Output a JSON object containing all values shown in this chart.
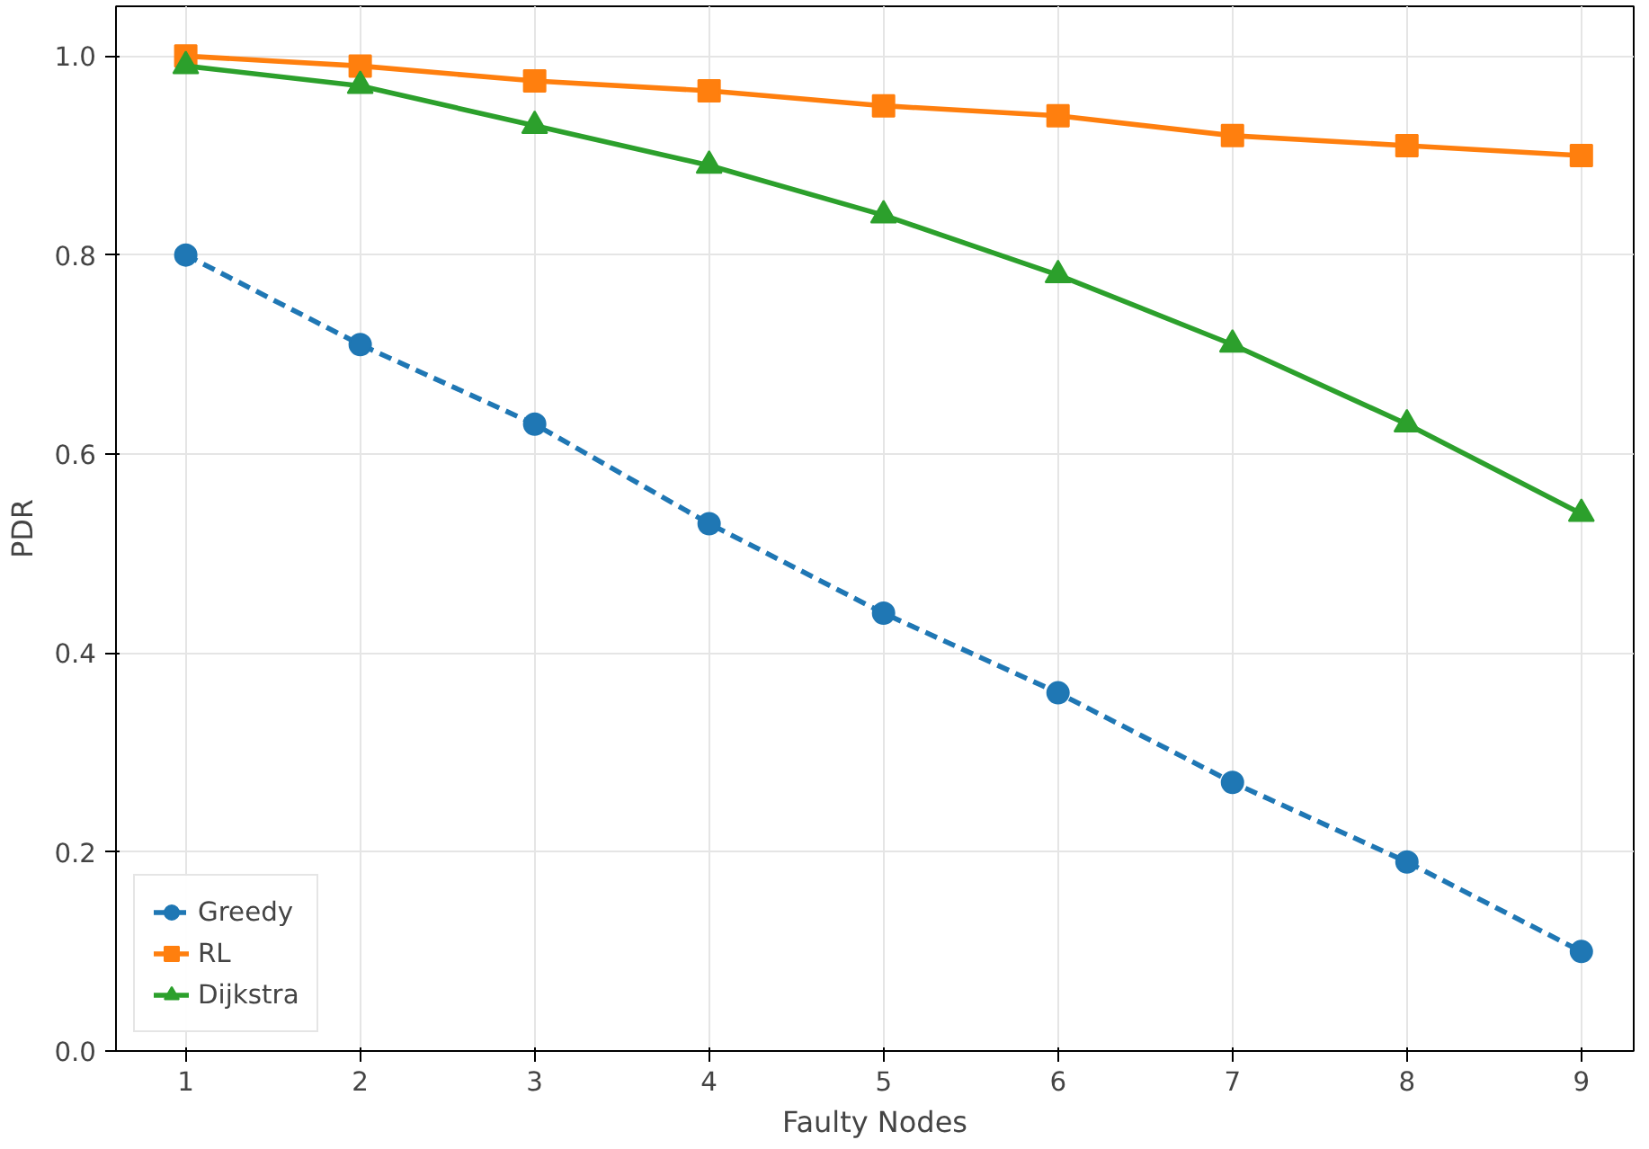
{
  "chart_data": {
    "type": "line",
    "xlabel": "Faulty Nodes",
    "ylabel": "PDR",
    "x": [
      1,
      2,
      3,
      4,
      5,
      6,
      7,
      8,
      9
    ],
    "series": [
      {
        "name": "Greedy",
        "color": "#1f77b4",
        "marker": "circle",
        "line_style": "dashed",
        "values": [
          0.8,
          0.71,
          0.63,
          0.53,
          0.44,
          0.36,
          0.27,
          0.19,
          0.1
        ]
      },
      {
        "name": "RL",
        "color": "#ff7f0e",
        "marker": "square",
        "line_style": "solid",
        "values": [
          1.0,
          0.99,
          0.975,
          0.965,
          0.95,
          0.94,
          0.92,
          0.91,
          0.9
        ]
      },
      {
        "name": "Dijkstra",
        "color": "#2ca02c",
        "marker": "triangle",
        "line_style": "solid",
        "values": [
          0.99,
          0.97,
          0.93,
          0.89,
          0.84,
          0.78,
          0.71,
          0.63,
          0.54
        ]
      }
    ],
    "xlim": [
      0.6,
      9.3
    ],
    "ylim": [
      0,
      1.05
    ],
    "xticks": [
      1,
      2,
      3,
      4,
      5,
      6,
      7,
      8,
      9
    ],
    "yticks": [
      {
        "value": 0,
        "label": "0.0"
      },
      {
        "value": 0.2,
        "label": "0.2"
      },
      {
        "value": 0.4,
        "label": "0.4"
      },
      {
        "value": 0.6,
        "label": "0.6"
      },
      {
        "value": 0.8,
        "label": "0.8"
      },
      {
        "value": 1.0,
        "label": "1.0"
      }
    ],
    "grid": true,
    "legend": "bottom left"
  }
}
